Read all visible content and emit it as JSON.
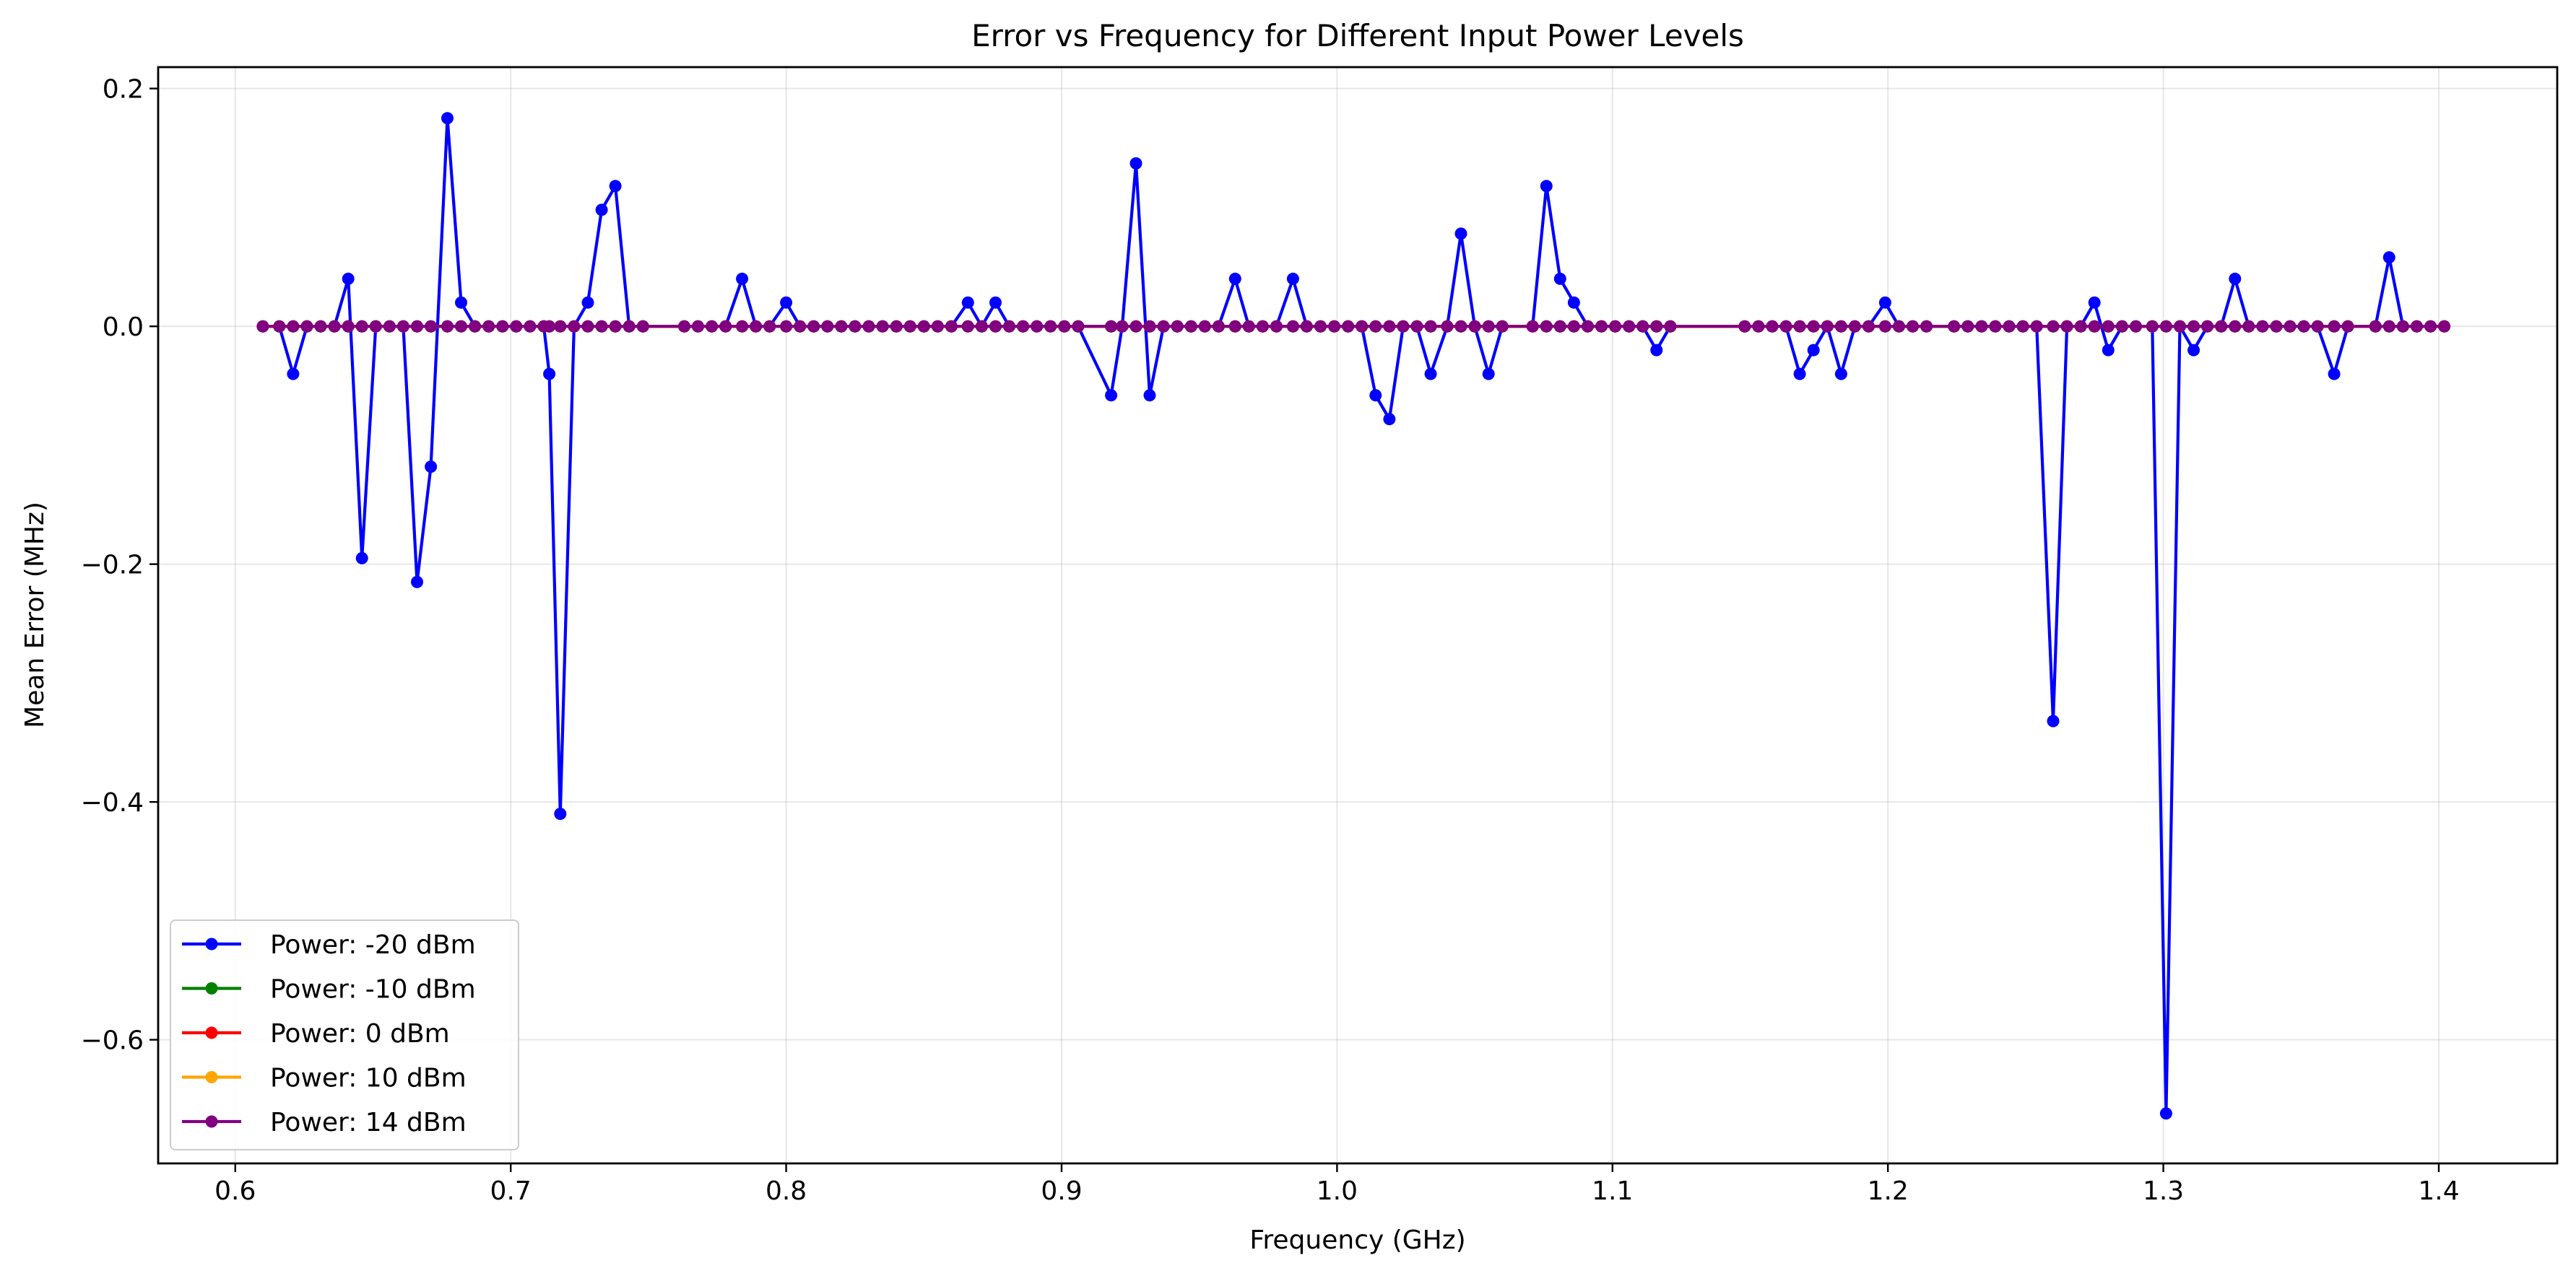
{
  "chart_data": {
    "type": "line",
    "title": "Error vs Frequency for Different Input Power Levels",
    "xlabel": "Frequency (GHz)",
    "ylabel": "Mean Error (MHz)",
    "xlim": [
      0.572,
      1.443
    ],
    "ylim": [
      -0.704,
      0.218
    ],
    "xticks": [
      0.6,
      0.7,
      0.8,
      0.9,
      1.0,
      1.1,
      1.2,
      1.3,
      1.4
    ],
    "xtick_labels": [
      "0.6",
      "0.7",
      "0.8",
      "0.9",
      "1.0",
      "1.1",
      "1.2",
      "1.3",
      "1.4"
    ],
    "yticks": [
      -0.6,
      -0.4,
      -0.2,
      0.0,
      0.2
    ],
    "ytick_labels": [
      "−0.6",
      "−0.4",
      "−0.2",
      "0.0",
      "0.2"
    ],
    "grid": true,
    "legend_position": "lower-left",
    "series": [
      {
        "name": "Power: -20 dBm",
        "color": "#0000ff",
        "points": [
          [
            0.61,
            0.0
          ],
          [
            0.616,
            0.0
          ],
          [
            0.621,
            -0.04
          ],
          [
            0.626,
            0.0
          ],
          [
            0.631,
            0.0
          ],
          [
            0.636,
            0.0
          ],
          [
            0.641,
            0.04
          ],
          [
            0.646,
            -0.195
          ],
          [
            0.651,
            0.0
          ],
          [
            0.656,
            0.0
          ],
          [
            0.661,
            0.0
          ],
          [
            0.666,
            -0.215
          ],
          [
            0.671,
            -0.118
          ],
          [
            0.677,
            0.175
          ],
          [
            0.682,
            0.02
          ],
          [
            0.687,
            0.0
          ],
          [
            0.692,
            0.0
          ],
          [
            0.697,
            0.0
          ],
          [
            0.702,
            0.0
          ],
          [
            0.707,
            0.0
          ],
          [
            0.712,
            0.0
          ],
          [
            0.714,
            -0.04
          ],
          [
            0.718,
            -0.41
          ],
          [
            0.723,
            0.0
          ],
          [
            0.728,
            0.02
          ],
          [
            0.733,
            0.098
          ],
          [
            0.738,
            0.118
          ],
          [
            0.743,
            0.0
          ],
          [
            0.748,
            0.0
          ],
          [
            0.763,
            0.0
          ],
          [
            0.768,
            0.0
          ],
          [
            0.773,
            0.0
          ],
          [
            0.778,
            0.0
          ],
          [
            0.784,
            0.04
          ],
          [
            0.789,
            0.0
          ],
          [
            0.794,
            0.0
          ],
          [
            0.8,
            0.02
          ],
          [
            0.805,
            0.0
          ],
          [
            0.81,
            0.0
          ],
          [
            0.815,
            0.0
          ],
          [
            0.82,
            0.0
          ],
          [
            0.825,
            0.0
          ],
          [
            0.83,
            0.0
          ],
          [
            0.835,
            0.0
          ],
          [
            0.84,
            0.0
          ],
          [
            0.845,
            0.0
          ],
          [
            0.85,
            0.0
          ],
          [
            0.855,
            0.0
          ],
          [
            0.86,
            0.0
          ],
          [
            0.866,
            0.02
          ],
          [
            0.871,
            0.0
          ],
          [
            0.876,
            0.02
          ],
          [
            0.881,
            0.0
          ],
          [
            0.886,
            0.0
          ],
          [
            0.891,
            0.0
          ],
          [
            0.896,
            0.0
          ],
          [
            0.901,
            0.0
          ],
          [
            0.906,
            0.0
          ],
          [
            0.918,
            -0.058
          ],
          [
            0.922,
            0.0
          ],
          [
            0.927,
            0.137
          ],
          [
            0.932,
            -0.058
          ],
          [
            0.937,
            0.0
          ],
          [
            0.942,
            0.0
          ],
          [
            0.947,
            0.0
          ],
          [
            0.952,
            0.0
          ],
          [
            0.957,
            0.0
          ],
          [
            0.963,
            0.04
          ],
          [
            0.968,
            0.0
          ],
          [
            0.973,
            0.0
          ],
          [
            0.978,
            0.0
          ],
          [
            0.984,
            0.04
          ],
          [
            0.989,
            0.0
          ],
          [
            0.994,
            0.0
          ],
          [
            0.999,
            0.0
          ],
          [
            1.004,
            0.0
          ],
          [
            1.009,
            0.0
          ],
          [
            1.014,
            -0.058
          ],
          [
            1.019,
            -0.078
          ],
          [
            1.024,
            0.0
          ],
          [
            1.029,
            0.0
          ],
          [
            1.034,
            -0.04
          ],
          [
            1.04,
            0.0
          ],
          [
            1.045,
            0.078
          ],
          [
            1.05,
            0.0
          ],
          [
            1.055,
            -0.04
          ],
          [
            1.06,
            0.0
          ],
          [
            1.071,
            0.0
          ],
          [
            1.076,
            0.118
          ],
          [
            1.081,
            0.04
          ],
          [
            1.086,
            0.02
          ],
          [
            1.091,
            0.0
          ],
          [
            1.096,
            0.0
          ],
          [
            1.101,
            0.0
          ],
          [
            1.106,
            0.0
          ],
          [
            1.111,
            0.0
          ],
          [
            1.116,
            -0.02
          ],
          [
            1.121,
            0.0
          ],
          [
            1.148,
            0.0
          ],
          [
            1.153,
            0.0
          ],
          [
            1.158,
            0.0
          ],
          [
            1.163,
            0.0
          ],
          [
            1.168,
            -0.04
          ],
          [
            1.173,
            -0.02
          ],
          [
            1.178,
            0.0
          ],
          [
            1.183,
            -0.04
          ],
          [
            1.188,
            0.0
          ],
          [
            1.193,
            0.0
          ],
          [
            1.199,
            0.02
          ],
          [
            1.204,
            0.0
          ],
          [
            1.209,
            0.0
          ],
          [
            1.214,
            0.0
          ],
          [
            1.224,
            0.0
          ],
          [
            1.229,
            0.0
          ],
          [
            1.234,
            0.0
          ],
          [
            1.239,
            0.0
          ],
          [
            1.244,
            0.0
          ],
          [
            1.249,
            0.0
          ],
          [
            1.254,
            0.0
          ],
          [
            1.26,
            -0.332
          ],
          [
            1.265,
            0.0
          ],
          [
            1.27,
            0.0
          ],
          [
            1.275,
            0.02
          ],
          [
            1.28,
            -0.02
          ],
          [
            1.285,
            0.0
          ],
          [
            1.29,
            0.0
          ],
          [
            1.296,
            0.0
          ],
          [
            1.301,
            -0.662
          ],
          [
            1.306,
            0.0
          ],
          [
            1.311,
            -0.02
          ],
          [
            1.316,
            0.0
          ],
          [
            1.321,
            0.0
          ],
          [
            1.326,
            0.04
          ],
          [
            1.331,
            0.0
          ],
          [
            1.336,
            0.0
          ],
          [
            1.341,
            0.0
          ],
          [
            1.346,
            0.0
          ],
          [
            1.351,
            0.0
          ],
          [
            1.356,
            0.0
          ],
          [
            1.362,
            -0.04
          ],
          [
            1.367,
            0.0
          ],
          [
            1.377,
            0.0
          ],
          [
            1.382,
            0.058
          ],
          [
            1.387,
            0.0
          ],
          [
            1.392,
            0.0
          ],
          [
            1.397,
            0.0
          ],
          [
            1.402,
            0.0
          ]
        ]
      },
      {
        "name": "Power: -10 dBm",
        "color": "#008000",
        "values_all_zero": true
      },
      {
        "name": "Power: 0 dBm",
        "color": "#ff0000",
        "values_all_zero": true
      },
      {
        "name": "Power: 10 dBm",
        "color": "#ffa500",
        "values_all_zero": true
      },
      {
        "name": "Power: 14 dBm",
        "color": "#800080",
        "values_all_zero": true
      }
    ]
  }
}
